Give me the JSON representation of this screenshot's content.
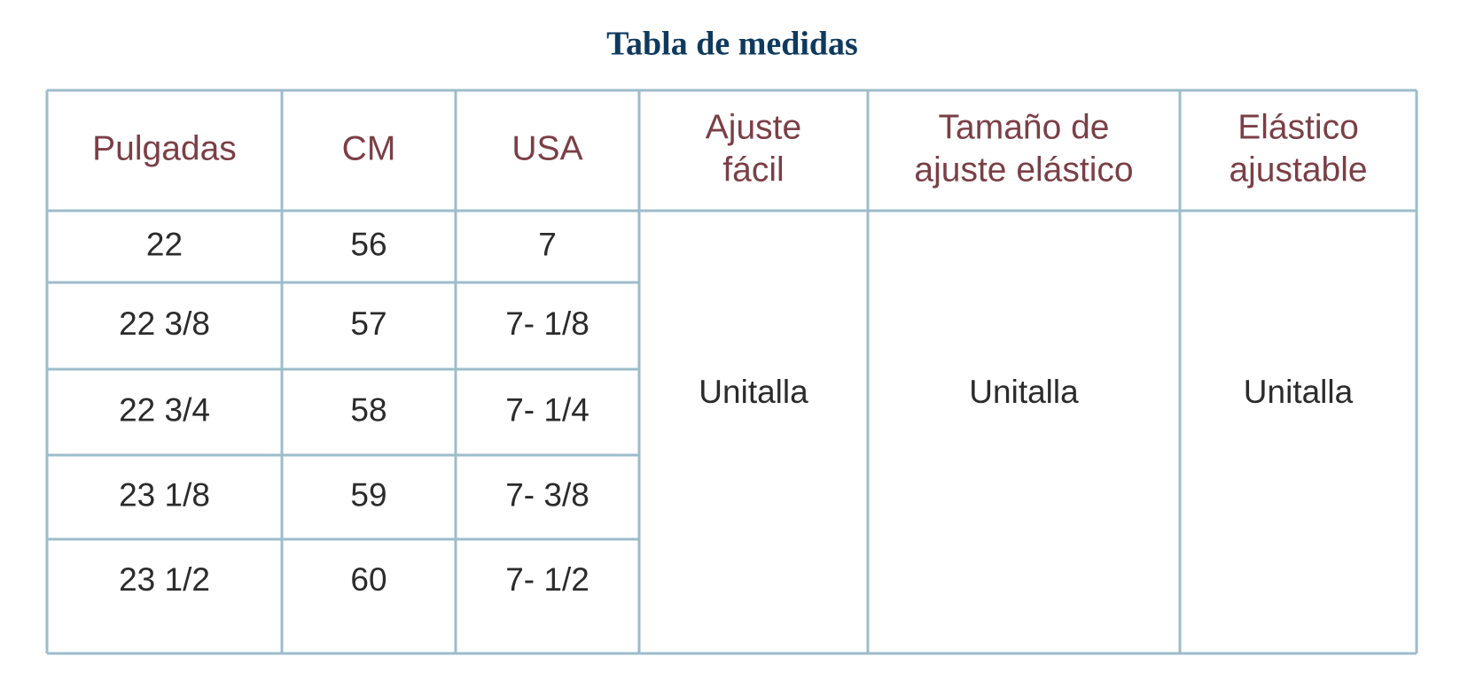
{
  "title": "Tabla de medidas",
  "table": {
    "header": [
      [
        "Pulgadas"
      ],
      [
        "CM"
      ],
      [
        "USA"
      ],
      [
        "Ajuste",
        "fácil"
      ],
      [
        "Tamaño de",
        "ajuste elástico"
      ],
      [
        "Elástico",
        "ajustable"
      ]
    ],
    "rows": [
      [
        "22",
        "56",
        "7"
      ],
      [
        "22 3/8",
        "57",
        "7- 1/8"
      ],
      [
        "22 3/4",
        "58",
        "7- 1/4"
      ],
      [
        "23 1/8",
        "59",
        "7- 3/8"
      ],
      [
        "23 1/2",
        "60",
        "7- 1/2"
      ]
    ],
    "merged": [
      "Unitalla",
      "Unitalla",
      "Unitalla"
    ]
  }
}
